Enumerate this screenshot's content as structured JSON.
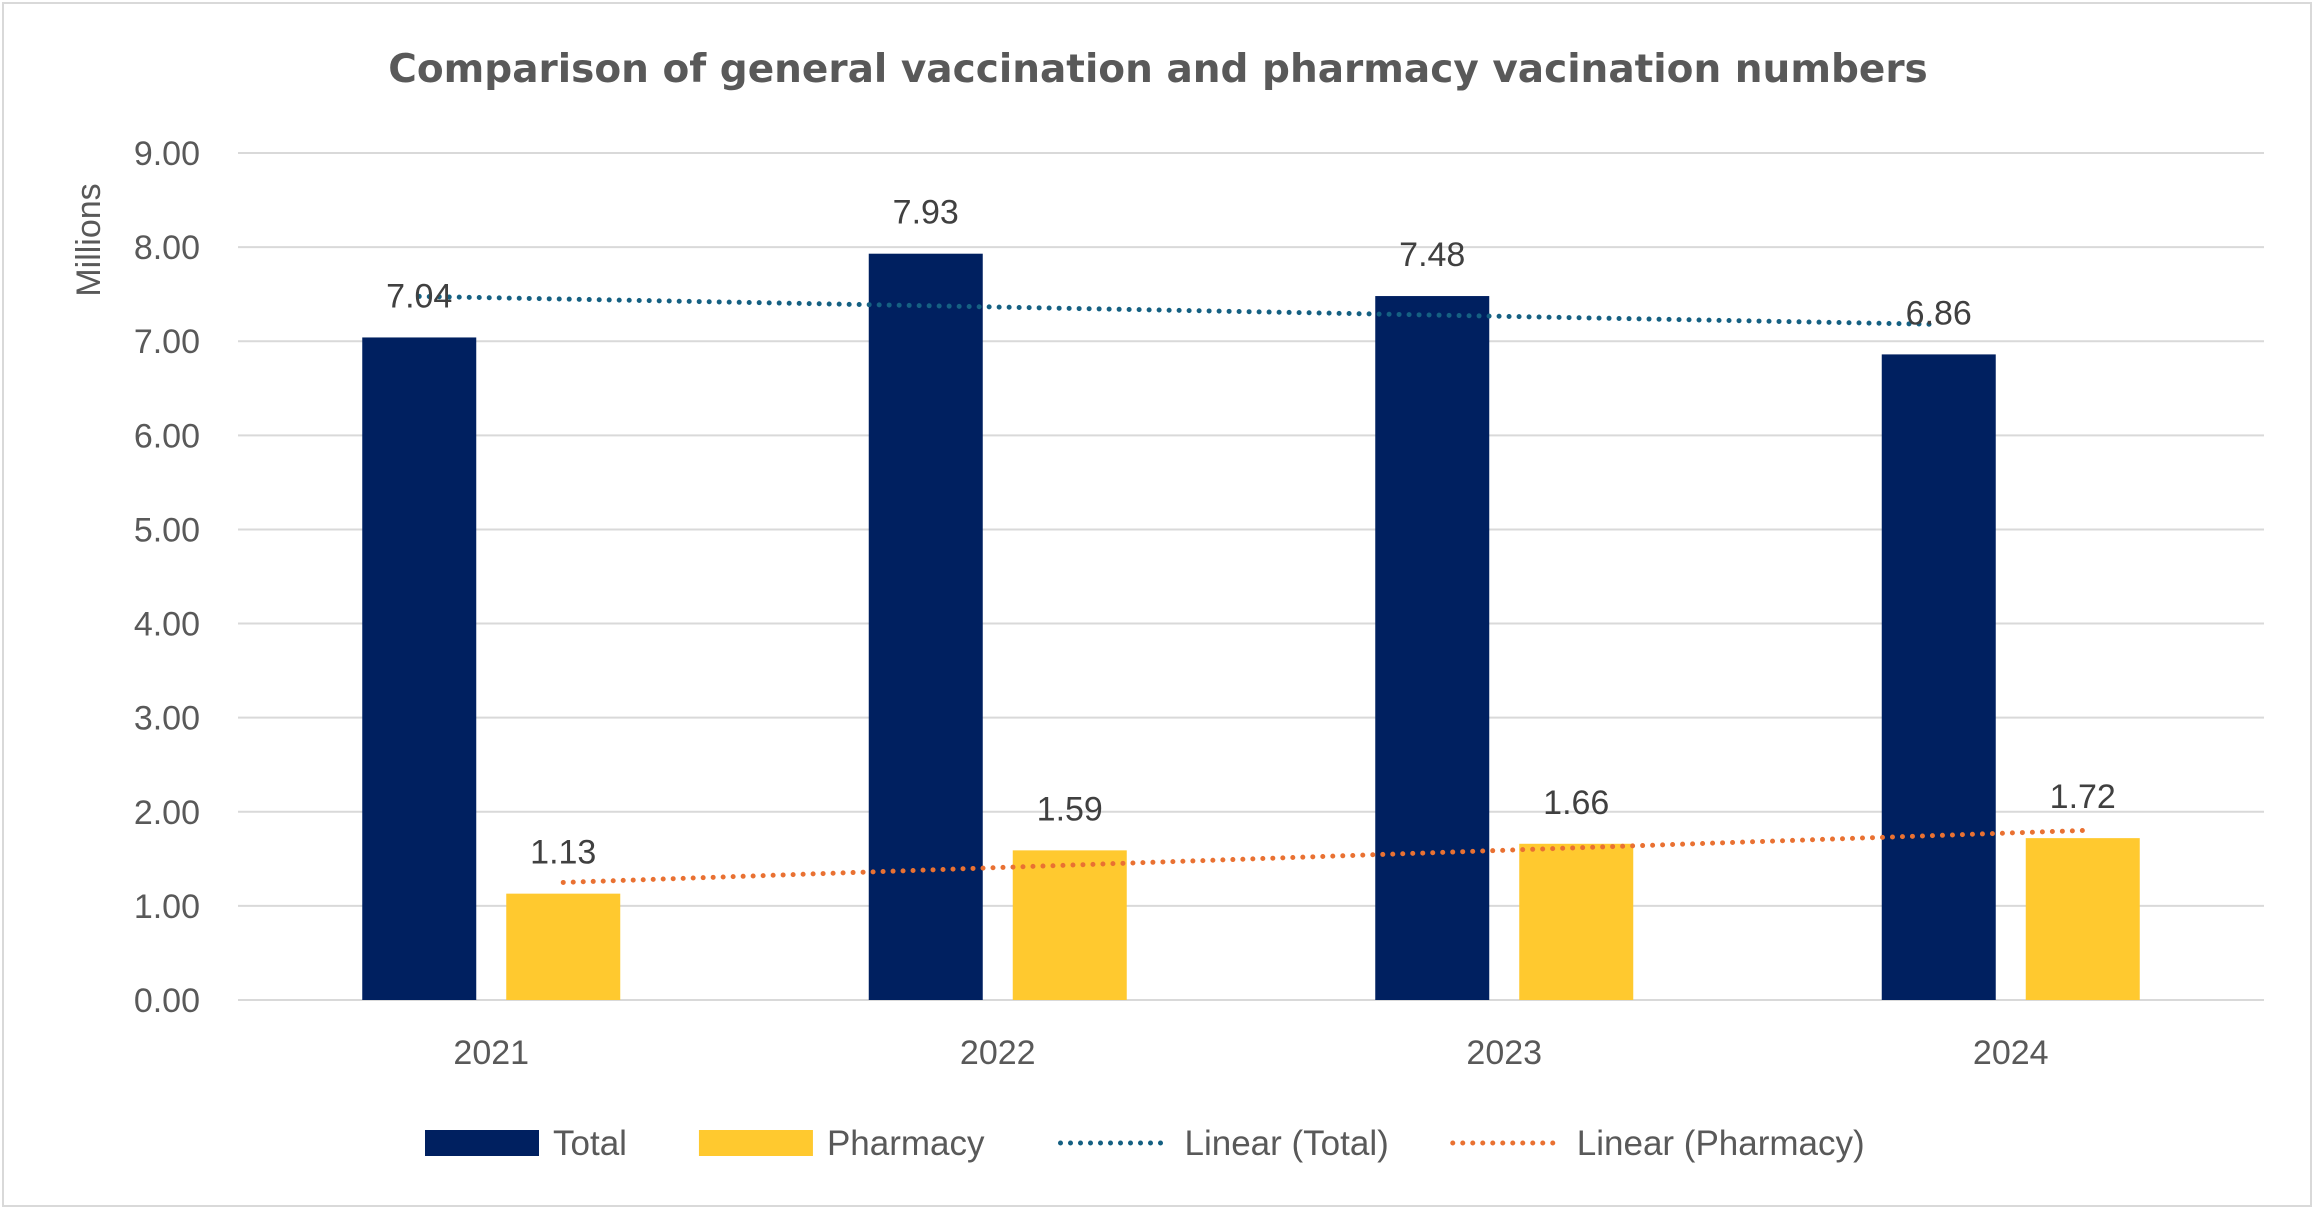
{
  "chart_data": {
    "type": "bar",
    "title": "Comparison of general vaccination and pharmacy vacination numbers",
    "ylabel": "Millions",
    "xlabel": "",
    "categories": [
      "2021",
      "2022",
      "2023",
      "2024"
    ],
    "ylim": [
      0,
      9
    ],
    "ytick_step": 1,
    "ytick_labels": [
      "0.00",
      "1.00",
      "2.00",
      "3.00",
      "4.00",
      "5.00",
      "6.00",
      "7.00",
      "8.00",
      "9.00"
    ],
    "grid": true,
    "legend_position": "bottom",
    "series": [
      {
        "name": "Total",
        "values": [
          7.04,
          7.93,
          7.48,
          6.86
        ],
        "labels": [
          "7.04",
          "7.93",
          "7.48",
          "6.86"
        ],
        "color": "#002060"
      },
      {
        "name": "Pharmacy",
        "values": [
          1.13,
          1.59,
          1.66,
          1.72
        ],
        "labels": [
          "1.13",
          "1.59",
          "1.66",
          "1.72"
        ],
        "color": "#FFC92F"
      }
    ],
    "trendlines": [
      {
        "name": "Linear (Total)",
        "type": "linear",
        "of_series": "Total",
        "color": "#156082",
        "style": "dotted"
      },
      {
        "name": "Linear (Pharmacy)",
        "type": "linear",
        "of_series": "Pharmacy",
        "color": "#E97132",
        "style": "dotted"
      }
    ]
  }
}
